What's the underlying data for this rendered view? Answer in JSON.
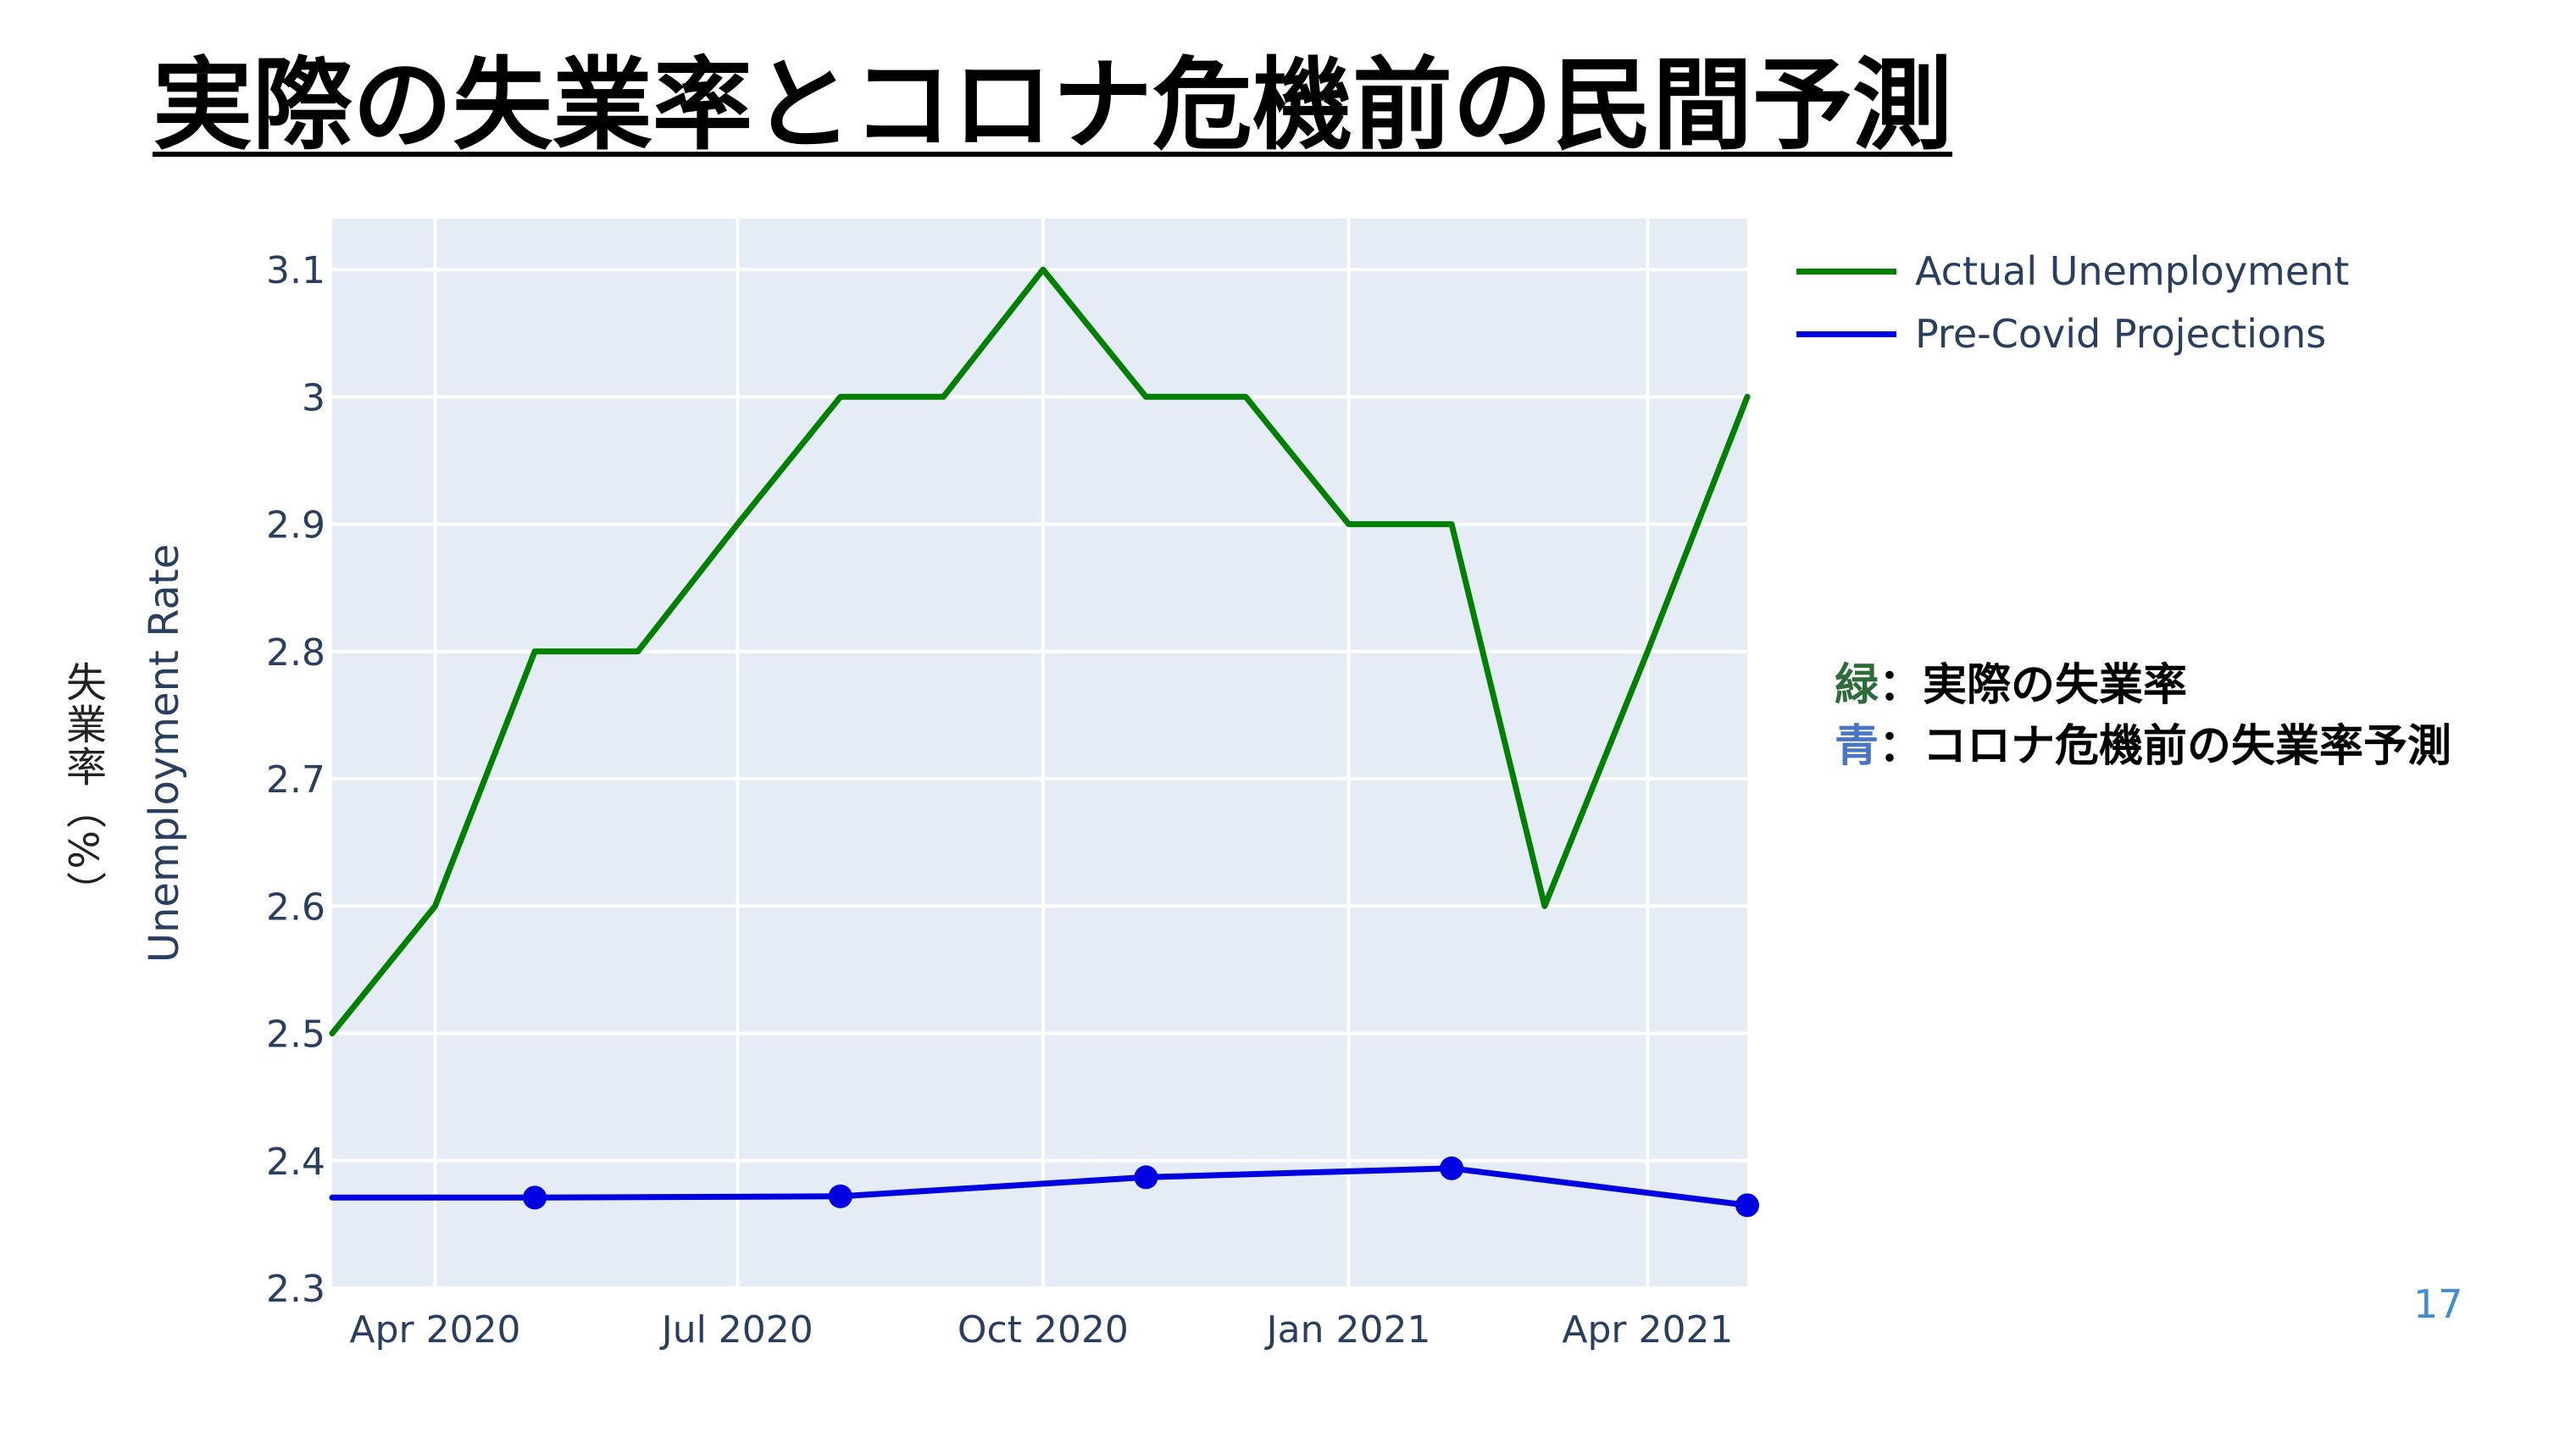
{
  "slide": {
    "title": "実際の失業率とコロナ危機前の民間予測",
    "ylabel_jp": "失業率（%）",
    "note_green_key": "緑",
    "note_green_text": "：実際の失業率",
    "note_blue_key": "青",
    "note_blue_text": "：コロナ危機前の失業率予測",
    "page_number": "17"
  },
  "chart_data": {
    "type": "line",
    "title": "",
    "xlabel": "",
    "ylabel": "Unemployment Rate",
    "ylim": [
      2.3,
      3.14
    ],
    "yticks": [
      2.3,
      2.4,
      2.5,
      2.6,
      2.7,
      2.8,
      2.9,
      3,
      3.1
    ],
    "ytick_labels": [
      "2.3",
      "2.4",
      "2.5",
      "2.6",
      "2.7",
      "2.8",
      "2.9",
      "3",
      "3.1"
    ],
    "xlim": [
      "2020-03-01",
      "2021-05-01"
    ],
    "xticks": [
      "2020-04-01",
      "2020-07-01",
      "2020-10-01",
      "2021-01-01",
      "2021-04-01"
    ],
    "xtick_labels": [
      "Apr 2020",
      "Jul 2020",
      "Oct 2020",
      "Jan 2021",
      "Apr 2021"
    ],
    "grid": true,
    "legend_position": "top-right, outside plot",
    "plot_background": "#e5ecf6",
    "series": [
      {
        "name": "Actual Unemployment",
        "color": "#008000",
        "markers": false,
        "x": [
          "2020-03-01",
          "2020-04-01",
          "2020-05-01",
          "2020-06-01",
          "2020-07-01",
          "2020-08-01",
          "2020-09-01",
          "2020-10-01",
          "2020-11-01",
          "2020-12-01",
          "2021-01-01",
          "2021-02-01",
          "2021-03-01",
          "2021-04-01",
          "2021-05-01"
        ],
        "y": [
          2.5,
          2.6,
          2.8,
          2.8,
          2.9,
          3.0,
          3.0,
          3.1,
          3.0,
          3.0,
          2.9,
          2.9,
          2.6,
          2.8,
          3.0
        ]
      },
      {
        "name": "Pre-Covid Projections",
        "color": "#0000e0",
        "markers": true,
        "x": [
          "2020-03-01",
          "2020-05-01",
          "2020-08-01",
          "2020-11-01",
          "2021-02-01",
          "2021-05-01"
        ],
        "y": [
          2.371,
          2.371,
          2.372,
          2.387,
          2.394,
          2.365
        ],
        "marker_visible": [
          false,
          true,
          true,
          true,
          true,
          true
        ]
      }
    ]
  }
}
